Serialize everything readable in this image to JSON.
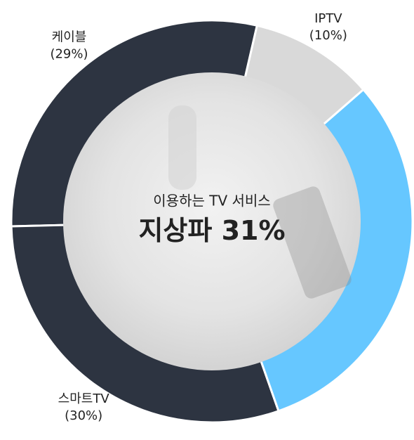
{
  "chart_data": {
    "type": "donut",
    "center_title": "이용하는 TV 서비스",
    "categories": [
      "IPTV",
      "지상파",
      "스마트TV",
      "케이블"
    ],
    "values": [
      10,
      31,
      30,
      29
    ],
    "value_labels": [
      "(10%)",
      "31%",
      "(30%)",
      "(29%)"
    ],
    "colors": [
      "#d9d9d9",
      "#66c7ff",
      "#2d3441",
      "#2d3441"
    ]
  }
}
